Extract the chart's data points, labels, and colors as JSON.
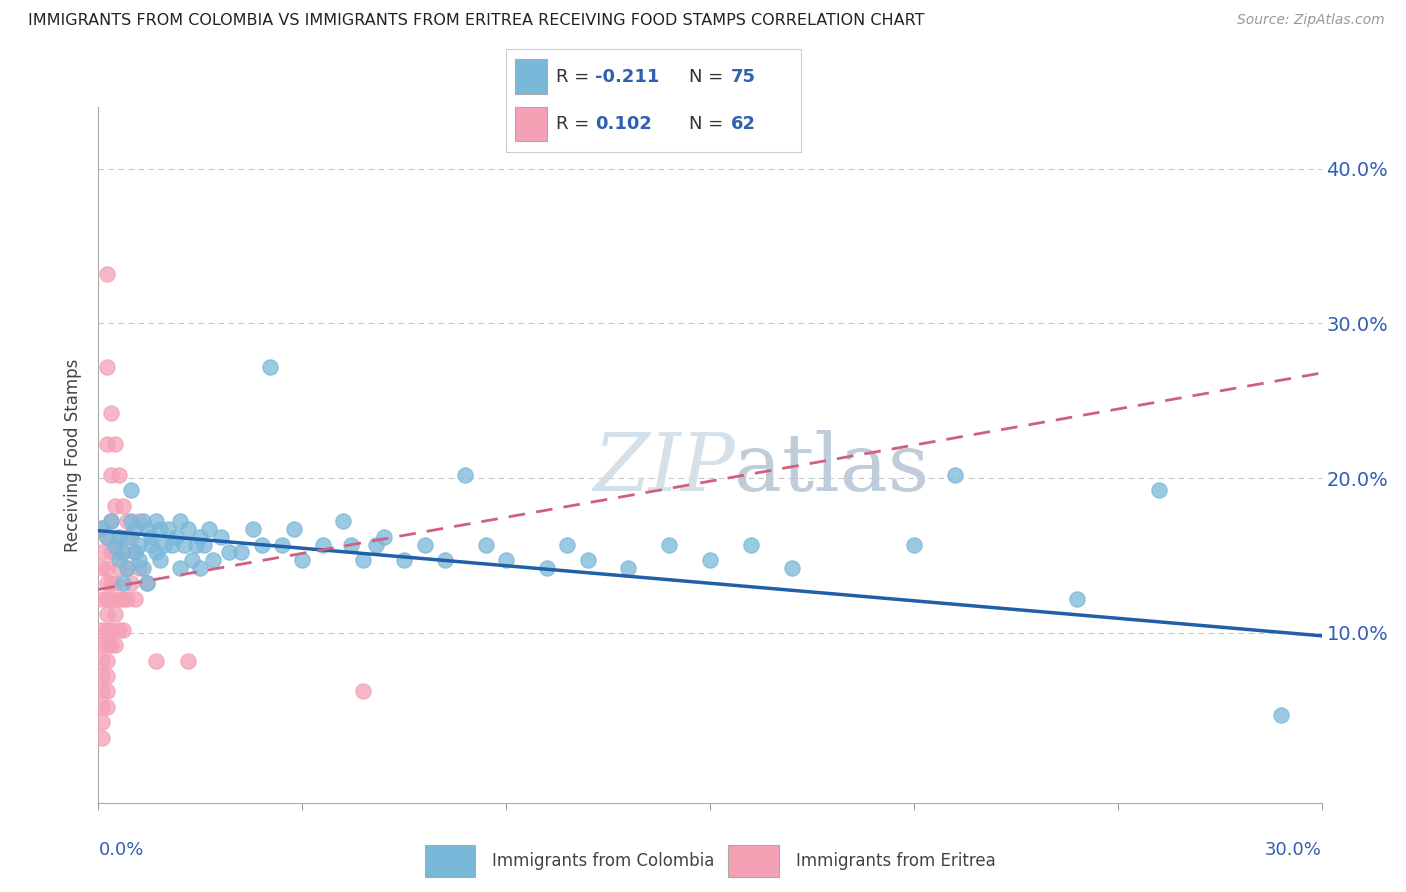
{
  "title": "IMMIGRANTS FROM COLOMBIA VS IMMIGRANTS FROM ERITREA RECEIVING FOOD STAMPS CORRELATION CHART",
  "source": "Source: ZipAtlas.com",
  "ylabel": "Receiving Food Stamps",
  "ytick_vals": [
    0.1,
    0.2,
    0.3,
    0.4
  ],
  "ytick_labels": [
    "10.0%",
    "20.0%",
    "30.0%",
    "40.0%"
  ],
  "xlim": [
    0.0,
    0.3
  ],
  "ylim": [
    -0.01,
    0.44
  ],
  "colombia_color": "#7ab8d9",
  "eritrea_color": "#f4a0b5",
  "colombia_line_color": "#2060a8",
  "eritrea_line_color": "#d06080",
  "colombia_R": -0.211,
  "colombia_N": 75,
  "eritrea_R": 0.102,
  "eritrea_N": 62,
  "legend_label_colombia": "Immigrants from Colombia",
  "legend_label_eritrea": "Immigrants from Eritrea",
  "colombia_scatter": [
    [
      0.001,
      0.168
    ],
    [
      0.002,
      0.162
    ],
    [
      0.003,
      0.172
    ],
    [
      0.004,
      0.156
    ],
    [
      0.005,
      0.148
    ],
    [
      0.005,
      0.162
    ],
    [
      0.006,
      0.132
    ],
    [
      0.006,
      0.152
    ],
    [
      0.007,
      0.142
    ],
    [
      0.007,
      0.162
    ],
    [
      0.008,
      0.192
    ],
    [
      0.008,
      0.172
    ],
    [
      0.009,
      0.167
    ],
    [
      0.009,
      0.152
    ],
    [
      0.01,
      0.157
    ],
    [
      0.01,
      0.147
    ],
    [
      0.011,
      0.172
    ],
    [
      0.011,
      0.142
    ],
    [
      0.012,
      0.132
    ],
    [
      0.012,
      0.167
    ],
    [
      0.013,
      0.162
    ],
    [
      0.013,
      0.157
    ],
    [
      0.014,
      0.152
    ],
    [
      0.014,
      0.172
    ],
    [
      0.015,
      0.147
    ],
    [
      0.015,
      0.167
    ],
    [
      0.016,
      0.157
    ],
    [
      0.017,
      0.167
    ],
    [
      0.018,
      0.157
    ],
    [
      0.019,
      0.162
    ],
    [
      0.02,
      0.172
    ],
    [
      0.02,
      0.142
    ],
    [
      0.021,
      0.157
    ],
    [
      0.022,
      0.167
    ],
    [
      0.023,
      0.147
    ],
    [
      0.024,
      0.157
    ],
    [
      0.025,
      0.162
    ],
    [
      0.025,
      0.142
    ],
    [
      0.026,
      0.157
    ],
    [
      0.027,
      0.167
    ],
    [
      0.028,
      0.147
    ],
    [
      0.03,
      0.162
    ],
    [
      0.032,
      0.152
    ],
    [
      0.035,
      0.152
    ],
    [
      0.038,
      0.167
    ],
    [
      0.04,
      0.157
    ],
    [
      0.042,
      0.272
    ],
    [
      0.045,
      0.157
    ],
    [
      0.048,
      0.167
    ],
    [
      0.05,
      0.147
    ],
    [
      0.055,
      0.157
    ],
    [
      0.06,
      0.172
    ],
    [
      0.062,
      0.157
    ],
    [
      0.065,
      0.147
    ],
    [
      0.068,
      0.157
    ],
    [
      0.07,
      0.162
    ],
    [
      0.075,
      0.147
    ],
    [
      0.08,
      0.157
    ],
    [
      0.085,
      0.147
    ],
    [
      0.09,
      0.202
    ],
    [
      0.095,
      0.157
    ],
    [
      0.1,
      0.147
    ],
    [
      0.11,
      0.142
    ],
    [
      0.115,
      0.157
    ],
    [
      0.12,
      0.147
    ],
    [
      0.13,
      0.142
    ],
    [
      0.14,
      0.157
    ],
    [
      0.15,
      0.147
    ],
    [
      0.16,
      0.157
    ],
    [
      0.17,
      0.142
    ],
    [
      0.2,
      0.157
    ],
    [
      0.21,
      0.202
    ],
    [
      0.24,
      0.122
    ],
    [
      0.26,
      0.192
    ],
    [
      0.29,
      0.047
    ]
  ],
  "eritrea_scatter": [
    [
      0.001,
      0.168
    ],
    [
      0.001,
      0.152
    ],
    [
      0.001,
      0.142
    ],
    [
      0.001,
      0.122
    ],
    [
      0.001,
      0.102
    ],
    [
      0.001,
      0.092
    ],
    [
      0.001,
      0.082
    ],
    [
      0.001,
      0.072
    ],
    [
      0.001,
      0.062
    ],
    [
      0.001,
      0.052
    ],
    [
      0.001,
      0.042
    ],
    [
      0.001,
      0.032
    ],
    [
      0.002,
      0.332
    ],
    [
      0.002,
      0.272
    ],
    [
      0.002,
      0.222
    ],
    [
      0.002,
      0.162
    ],
    [
      0.002,
      0.142
    ],
    [
      0.002,
      0.132
    ],
    [
      0.002,
      0.122
    ],
    [
      0.002,
      0.112
    ],
    [
      0.002,
      0.102
    ],
    [
      0.002,
      0.092
    ],
    [
      0.002,
      0.082
    ],
    [
      0.002,
      0.072
    ],
    [
      0.002,
      0.062
    ],
    [
      0.002,
      0.052
    ],
    [
      0.003,
      0.242
    ],
    [
      0.003,
      0.202
    ],
    [
      0.003,
      0.172
    ],
    [
      0.003,
      0.152
    ],
    [
      0.003,
      0.132
    ],
    [
      0.003,
      0.122
    ],
    [
      0.003,
      0.102
    ],
    [
      0.003,
      0.092
    ],
    [
      0.004,
      0.222
    ],
    [
      0.004,
      0.182
    ],
    [
      0.004,
      0.152
    ],
    [
      0.004,
      0.132
    ],
    [
      0.004,
      0.112
    ],
    [
      0.004,
      0.092
    ],
    [
      0.005,
      0.202
    ],
    [
      0.005,
      0.162
    ],
    [
      0.005,
      0.142
    ],
    [
      0.005,
      0.122
    ],
    [
      0.005,
      0.102
    ],
    [
      0.006,
      0.182
    ],
    [
      0.006,
      0.152
    ],
    [
      0.006,
      0.122
    ],
    [
      0.006,
      0.102
    ],
    [
      0.007,
      0.172
    ],
    [
      0.007,
      0.142
    ],
    [
      0.007,
      0.122
    ],
    [
      0.008,
      0.162
    ],
    [
      0.008,
      0.132
    ],
    [
      0.009,
      0.152
    ],
    [
      0.009,
      0.122
    ],
    [
      0.01,
      0.172
    ],
    [
      0.01,
      0.142
    ],
    [
      0.012,
      0.132
    ],
    [
      0.014,
      0.082
    ],
    [
      0.022,
      0.082
    ],
    [
      0.065,
      0.062
    ]
  ],
  "background_color": "#ffffff",
  "grid_color": "#c8c8c8"
}
